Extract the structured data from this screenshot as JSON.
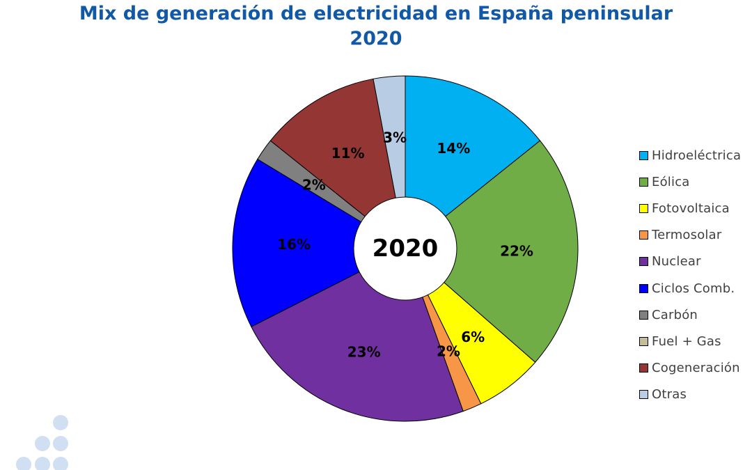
{
  "chart_data": {
    "type": "pie",
    "title_line1": "Mix de generación de electricidad en España peninsular",
    "title_line2": "2020",
    "center_label": "2020",
    "legend_position": "right",
    "categories": [
      "Hidroeléctrica",
      "Eólica",
      "Fotovoltaica",
      "Termosolar",
      "Nuclear",
      "Ciclos Comb.",
      "Carbón",
      "Fuel + Gas",
      "Cogeneración",
      "Otras"
    ],
    "values": [
      14.4,
      22.4,
      6.4,
      1.8,
      23.2,
      16.3,
      2.1,
      0.0,
      11.4,
      3.0
    ],
    "data_labels": [
      "14%",
      "22%",
      "6%",
      "2%",
      "23%",
      "16%",
      "2%",
      "",
      "11%",
      "3%"
    ],
    "colors": [
      "#00b0f0",
      "#70ad47",
      "#ffff00",
      "#f79646",
      "#7030a0",
      "#0000ff",
      "#808080",
      "#c4bd97",
      "#943634",
      "#b8cce4"
    ]
  }
}
